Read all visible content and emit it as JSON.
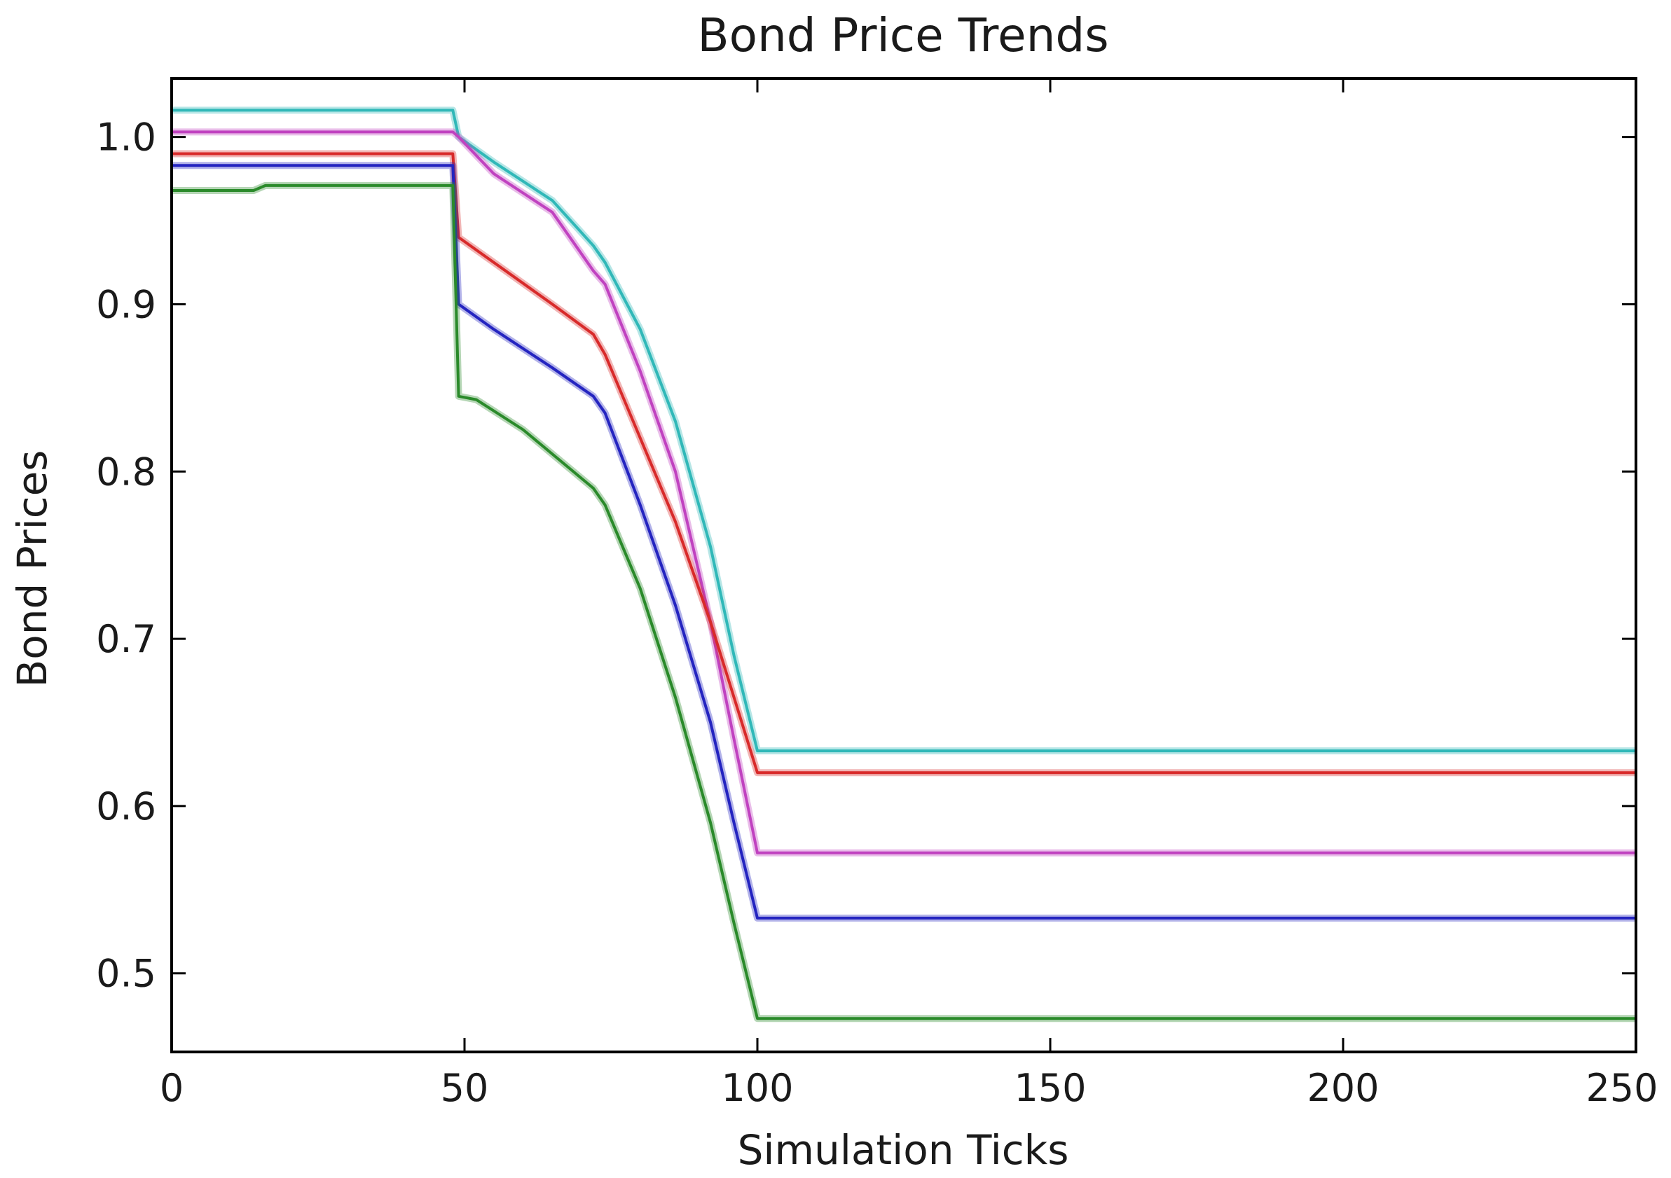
{
  "chart_data": {
    "type": "line",
    "title": "Bond Price Trends",
    "xlabel": "Simulation Ticks",
    "ylabel": "Bond Prices",
    "xlim": [
      0,
      250
    ],
    "ylim": [
      0.453,
      1.035
    ],
    "x_ticks": [
      0,
      50,
      100,
      150,
      200,
      250
    ],
    "x_tick_labels": [
      "0",
      "50",
      "100",
      "150",
      "200",
      "250"
    ],
    "y_ticks": [
      0.5,
      0.6,
      0.7,
      0.8,
      0.9,
      1.0
    ],
    "y_tick_labels": [
      "0.5",
      "0.6",
      "0.7",
      "0.8",
      "0.9",
      "1.0"
    ],
    "grid": false,
    "legend": "none",
    "series": [
      {
        "color": "#30b8b8",
        "points": [
          [
            0,
            1.016
          ],
          [
            48,
            1.016
          ],
          [
            49,
            1.0
          ],
          [
            55,
            0.985
          ],
          [
            65,
            0.962
          ],
          [
            72,
            0.935
          ],
          [
            74,
            0.925
          ],
          [
            80,
            0.885
          ],
          [
            86,
            0.83
          ],
          [
            92,
            0.755
          ],
          [
            96,
            0.69
          ],
          [
            100,
            0.633
          ],
          [
            250,
            0.633
          ]
        ]
      },
      {
        "color": "#c042c0",
        "points": [
          [
            0,
            1.003
          ],
          [
            48,
            1.003
          ],
          [
            49,
            1.0
          ],
          [
            55,
            0.978
          ],
          [
            65,
            0.955
          ],
          [
            72,
            0.92
          ],
          [
            74,
            0.912
          ],
          [
            80,
            0.86
          ],
          [
            86,
            0.8
          ],
          [
            92,
            0.71
          ],
          [
            96,
            0.64
          ],
          [
            100,
            0.572
          ],
          [
            250,
            0.572
          ]
        ]
      },
      {
        "color": "#d82a2a",
        "points": [
          [
            0,
            0.99
          ],
          [
            48,
            0.99
          ],
          [
            49,
            0.94
          ],
          [
            55,
            0.925
          ],
          [
            65,
            0.9
          ],
          [
            72,
            0.882
          ],
          [
            74,
            0.87
          ],
          [
            80,
            0.82
          ],
          [
            86,
            0.77
          ],
          [
            92,
            0.71
          ],
          [
            96,
            0.665
          ],
          [
            100,
            0.62
          ],
          [
            250,
            0.62
          ]
        ]
      },
      {
        "color": "#2424c0",
        "points": [
          [
            0,
            0.983
          ],
          [
            48,
            0.983
          ],
          [
            49,
            0.9
          ],
          [
            55,
            0.885
          ],
          [
            65,
            0.862
          ],
          [
            72,
            0.845
          ],
          [
            74,
            0.835
          ],
          [
            80,
            0.78
          ],
          [
            86,
            0.72
          ],
          [
            92,
            0.65
          ],
          [
            96,
            0.59
          ],
          [
            100,
            0.533
          ],
          [
            250,
            0.533
          ]
        ]
      },
      {
        "color": "#2a8a2a",
        "points": [
          [
            0,
            0.968
          ],
          [
            14,
            0.968
          ],
          [
            16,
            0.971
          ],
          [
            48,
            0.971
          ],
          [
            49,
            0.845
          ],
          [
            52,
            0.843
          ],
          [
            60,
            0.825
          ],
          [
            72,
            0.79
          ],
          [
            74,
            0.78
          ],
          [
            80,
            0.73
          ],
          [
            86,
            0.665
          ],
          [
            92,
            0.59
          ],
          [
            96,
            0.53
          ],
          [
            100,
            0.473
          ],
          [
            250,
            0.473
          ]
        ]
      }
    ]
  }
}
